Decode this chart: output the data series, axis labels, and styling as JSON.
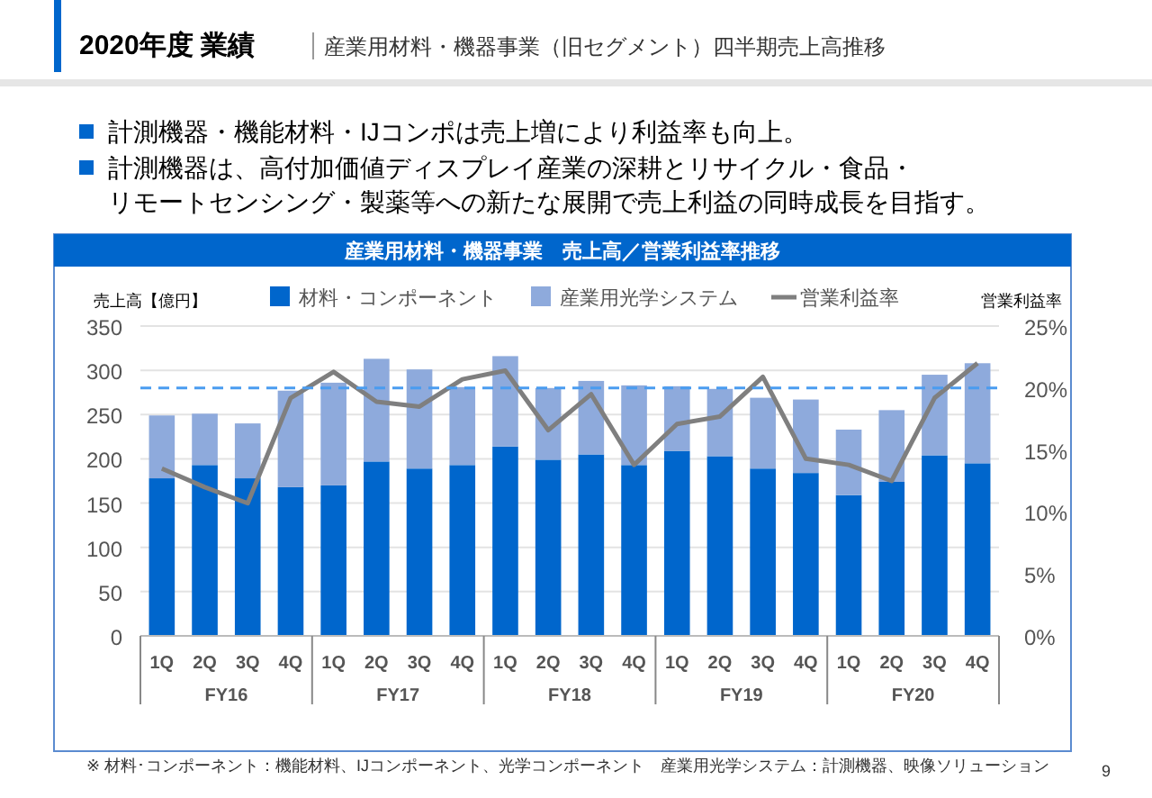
{
  "chart_data": {
    "type": "bar",
    "stacked": true,
    "title": "2020年度 業績",
    "subtitle": "産業用材料・機器事業（旧セグメント）四半期売上高推移",
    "annotations": [
      "産業用材料・機器事業　売上高／営業利益率推移",
      "計測機器・機能材料・IJコンポは売上増により利益率も向上。",
      "計測機器は、高付加価値ディスプレイ産業の深耕とリサイクル・食品・",
      "リモートセンシング・製薬等への新たな展開で売上利益の同時成長を目指す。",
      "FY16",
      "FY17",
      "FY18",
      "FY19",
      "FY20",
      "※ 材料･コンポーネント：機能材料、IJコンポーネント、光学コンポーネント　産業用光学システム：計測機器、映像ソリューション",
      "9"
    ],
    "ylabel": "売上高【億円】",
    "y2label": "営業利益率",
    "categories": [
      "1Q",
      "2Q",
      "3Q",
      "4Q",
      "1Q",
      "2Q",
      "3Q",
      "4Q",
      "1Q",
      "2Q",
      "3Q",
      "4Q",
      "1Q",
      "2Q",
      "3Q",
      "4Q",
      "1Q",
      "2Q",
      "3Q",
      "4Q"
    ],
    "series": [
      {
        "name": "材料・コンポーネント",
        "color": "#0066cc",
        "values": [
          178,
          193,
          178,
          168,
          170,
          197,
          189,
          193,
          214,
          199,
          205,
          193,
          209,
          203,
          189,
          184,
          159,
          174,
          204,
          195
        ]
      },
      {
        "name": "産業用光学システム",
        "color": "#8eaadc",
        "values": [
          71,
          58,
          62,
          109,
          116,
          116,
          112,
          88,
          102,
          81,
          83,
          90,
          73,
          76,
          80,
          83,
          74,
          81,
          91,
          113
        ]
      },
      {
        "name": "営業利益率",
        "type": "line",
        "axis": "y2",
        "color": "#7f7f7f",
        "values": [
          13.5,
          12.0,
          10.7,
          19.2,
          21.3,
          18.9,
          18.5,
          20.7,
          21.4,
          16.6,
          19.5,
          13.8,
          17.1,
          17.7,
          20.9,
          14.3,
          13.8,
          12.5,
          19.2,
          22.0
        ]
      }
    ],
    "ylim": [
      0,
      350
    ],
    "yticks": [
      0,
      50,
      100,
      150,
      200,
      250,
      300,
      350
    ],
    "y2lim": [
      0,
      25
    ],
    "y2ticks": [
      {
        "value": 0,
        "label": "0%"
      },
      {
        "value": 5,
        "label": "5%"
      },
      {
        "value": 10,
        "label": "10%"
      },
      {
        "value": 15,
        "label": "15%"
      },
      {
        "value": 20,
        "label": "20%"
      },
      {
        "value": 25,
        "label": "25%"
      }
    ],
    "ref_lines": [
      {
        "axis": "y2",
        "value": 20,
        "color": "#4a9cf0",
        "line_style": "dashed"
      }
    ],
    "grid": "y",
    "legend": "top",
    "line_style": "solid"
  }
}
